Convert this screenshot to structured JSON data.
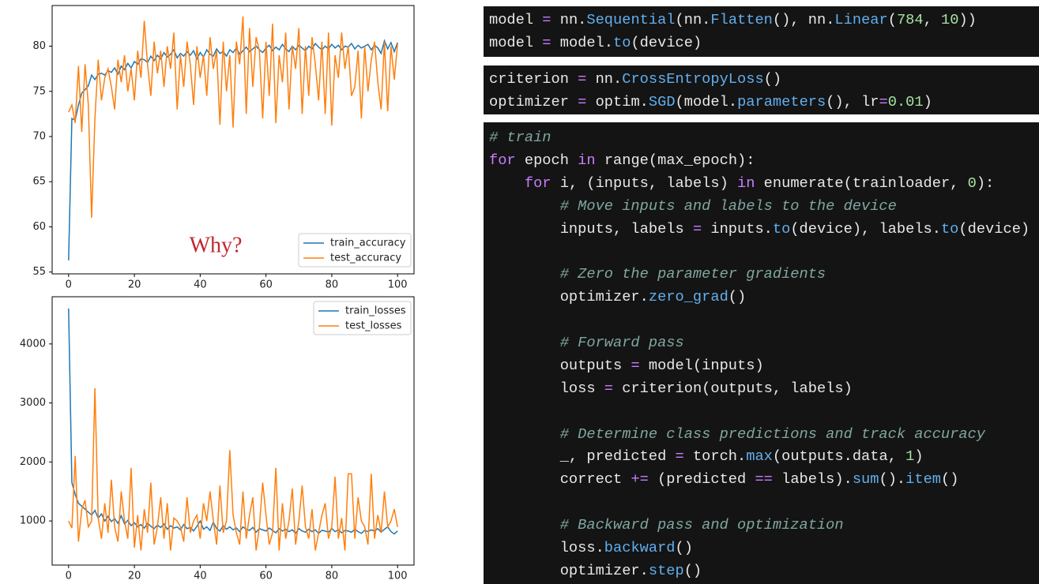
{
  "chart_data": [
    {
      "type": "line",
      "annotation": "Why?",
      "legend": "lower right",
      "xlim": [
        -5,
        105
      ],
      "ylim": [
        54.8,
        84.5
      ],
      "xticks": [
        0,
        20,
        40,
        60,
        80,
        100
      ],
      "yticks": [
        55,
        60,
        65,
        70,
        75,
        80
      ],
      "x": [
        0,
        1,
        2,
        3,
        4,
        5,
        6,
        7,
        8,
        9,
        10,
        11,
        12,
        13,
        14,
        15,
        16,
        17,
        18,
        19,
        20,
        21,
        22,
        23,
        24,
        25,
        26,
        27,
        28,
        29,
        30,
        31,
        32,
        33,
        34,
        35,
        36,
        37,
        38,
        39,
        40,
        41,
        42,
        43,
        44,
        45,
        46,
        47,
        48,
        49,
        50,
        51,
        52,
        53,
        54,
        55,
        56,
        57,
        58,
        59,
        60,
        61,
        62,
        63,
        64,
        65,
        66,
        67,
        68,
        69,
        70,
        71,
        72,
        73,
        74,
        75,
        76,
        77,
        78,
        79,
        80,
        81,
        82,
        83,
        84,
        85,
        86,
        87,
        88,
        89,
        90,
        91,
        92,
        93,
        94,
        95,
        96,
        97,
        98,
        99,
        100
      ],
      "series": [
        {
          "name": "train_accuracy",
          "color": "#1f77b4",
          "values": [
            56.3,
            72.0,
            71.8,
            73.5,
            74.8,
            75.2,
            75.6,
            76.8,
            76.3,
            76.9,
            77.0,
            76.8,
            77.3,
            77.1,
            77.6,
            76.9,
            77.8,
            77.4,
            78.1,
            77.6,
            78.3,
            78.0,
            78.6,
            78.5,
            78.2,
            78.9,
            78.4,
            79.0,
            78.6,
            79.3,
            78.8,
            79.1,
            79.6,
            78.7,
            79.2,
            78.9,
            79.4,
            79.0,
            79.5,
            78.6,
            79.3,
            78.8,
            79.6,
            79.1,
            78.9,
            79.7,
            79.2,
            79.4,
            78.9,
            79.6,
            79.3,
            79.8,
            79.1,
            79.5,
            79.9,
            79.4,
            79.7,
            80.0,
            79.6,
            79.3,
            79.8,
            80.1,
            79.5,
            79.9,
            79.6,
            80.2,
            79.7,
            79.4,
            80.0,
            79.6,
            80.1,
            79.8,
            79.5,
            80.0,
            79.7,
            80.3,
            79.9,
            79.6,
            80.0,
            79.7,
            80.2,
            79.8,
            80.1,
            79.6,
            80.0,
            79.9,
            80.3,
            79.7,
            80.1,
            79.8,
            80.0,
            80.2,
            79.6,
            80.1,
            79.8,
            79.2,
            80.6,
            79.7,
            80.4,
            79.4,
            80.4
          ]
        },
        {
          "name": "test_accuracy",
          "color": "#ff7f0e",
          "values": [
            72.7,
            73.5,
            71.5,
            77.8,
            70.5,
            78.0,
            73.5,
            61.0,
            72.0,
            78.5,
            74.0,
            76.5,
            77.5,
            75.5,
            73.0,
            78.5,
            76.0,
            79.0,
            75.0,
            77.5,
            74.0,
            79.5,
            76.5,
            82.8,
            78.0,
            74.5,
            80.5,
            77.0,
            79.5,
            75.5,
            80.0,
            77.5,
            81.5,
            73.0,
            79.0,
            75.5,
            80.5,
            78.0,
            73.5,
            80.0,
            76.5,
            79.0,
            74.5,
            81.0,
            77.5,
            79.5,
            71.3,
            80.5,
            75.0,
            79.0,
            71.0,
            80.5,
            78.0,
            83.3,
            72.5,
            82.0,
            75.5,
            81.0,
            79.5,
            72.0,
            80.5,
            74.5,
            82.5,
            71.5,
            79.0,
            76.0,
            81.5,
            73.0,
            80.0,
            77.5,
            82.0,
            72.5,
            80.0,
            74.5,
            81.0,
            78.0,
            74.0,
            80.5,
            72.5,
            81.5,
            71.2,
            79.0,
            76.5,
            81.5,
            77.5,
            80.0,
            74.5,
            75.5,
            79.5,
            72.0,
            80.0,
            75.0,
            78.5,
            80.5,
            76.0,
            73.0,
            80.5,
            72.8,
            80.0,
            76.3,
            80.3
          ]
        }
      ]
    },
    {
      "type": "line",
      "legend": "upper right",
      "xlim": [
        -5,
        105
      ],
      "ylim": [
        253,
        4800
      ],
      "xticks": [
        0,
        20,
        40,
        60,
        80,
        100
      ],
      "yticks": [
        1000,
        2000,
        3000,
        4000
      ],
      "x": [
        0,
        1,
        2,
        3,
        4,
        5,
        6,
        7,
        8,
        9,
        10,
        11,
        12,
        13,
        14,
        15,
        16,
        17,
        18,
        19,
        20,
        21,
        22,
        23,
        24,
        25,
        26,
        27,
        28,
        29,
        30,
        31,
        32,
        33,
        34,
        35,
        36,
        37,
        38,
        39,
        40,
        41,
        42,
        43,
        44,
        45,
        46,
        47,
        48,
        49,
        50,
        51,
        52,
        53,
        54,
        55,
        56,
        57,
        58,
        59,
        60,
        61,
        62,
        63,
        64,
        65,
        66,
        67,
        68,
        69,
        70,
        71,
        72,
        73,
        74,
        75,
        76,
        77,
        78,
        79,
        80,
        81,
        82,
        83,
        84,
        85,
        86,
        87,
        88,
        89,
        90,
        91,
        92,
        93,
        94,
        95,
        96,
        97,
        98,
        99,
        100
      ],
      "series": [
        {
          "name": "train_losses",
          "color": "#1f77b4",
          "values": [
            4600,
            1650,
            1450,
            1300,
            1250,
            1200,
            1150,
            1100,
            1180,
            1050,
            1120,
            1000,
            1080,
            990,
            1040,
            960,
            1090,
            950,
            1010,
            920,
            970,
            900,
            940,
            880,
            960,
            910,
            870,
            930,
            890,
            950,
            860,
            920,
            880,
            900,
            850,
            940,
            870,
            890,
            830,
            910,
            1000,
            860,
            900,
            840,
            980,
            870,
            830,
            920,
            860,
            900,
            850,
            880,
            820,
            900,
            860,
            840,
            890,
            810,
            870,
            850,
            830,
            880,
            840,
            800,
            870,
            830,
            860,
            820,
            850,
            790,
            870,
            830,
            810,
            860,
            820,
            850,
            790,
            840,
            830,
            810,
            870,
            820,
            850,
            800,
            840,
            830,
            810,
            860,
            820,
            790,
            840,
            820,
            850,
            830,
            870,
            810,
            860,
            900,
            820,
            780,
            830
          ]
        },
        {
          "name": "test_losses",
          "color": "#ff7f0e",
          "values": [
            1000,
            880,
            2100,
            650,
            1200,
            1350,
            900,
            1000,
            3250,
            1050,
            700,
            1300,
            800,
            1700,
            900,
            650,
            1500,
            1000,
            700,
            1900,
            550,
            1100,
            500,
            1200,
            800,
            1650,
            600,
            900,
            1400,
            700,
            1300,
            500,
            1050,
            1000,
            900,
            650,
            1400,
            800,
            1000,
            1100,
            700,
            1300,
            1000,
            1500,
            1000,
            600,
            1600,
            800,
            1000,
            2200,
            1100,
            800,
            600,
            1500,
            700,
            1100,
            1400,
            500,
            900,
            1650,
            1100,
            600,
            800,
            1900,
            500,
            1300,
            700,
            1000,
            1550,
            600,
            1000,
            1600,
            900,
            700,
            1200,
            500,
            800,
            1100,
            1300,
            700,
            900,
            1750,
            700,
            1050,
            500,
            1800,
            1800,
            700,
            1400,
            1000,
            900,
            600,
            1800,
            700,
            1100,
            800,
            1500,
            900,
            1000,
            1200,
            900
          ]
        }
      ]
    }
  ],
  "code_blocks": [
    {
      "lines": [
        [
          [
            "model ",
            "#e8e8e8"
          ],
          [
            "=",
            "#c77dff"
          ],
          [
            " nn.",
            "#e8e8e8"
          ],
          [
            "Sequential",
            "#61afef"
          ],
          [
            "(nn.",
            "#e8e8e8"
          ],
          [
            "Flatten",
            "#61afef"
          ],
          [
            "(), nn.",
            "#e8e8e8"
          ],
          [
            "Linear",
            "#61afef"
          ],
          [
            "(",
            "#e8e8e8"
          ],
          [
            "784",
            "#a6e3a1"
          ],
          [
            ", ",
            "#e8e8e8"
          ],
          [
            "10",
            "#a6e3a1"
          ],
          [
            "))",
            "#e8e8e8"
          ]
        ],
        [
          [
            "model ",
            "#e8e8e8"
          ],
          [
            "=",
            "#c77dff"
          ],
          [
            " model.",
            "#e8e8e8"
          ],
          [
            "to",
            "#61afef"
          ],
          [
            "(device)",
            "#e8e8e8"
          ]
        ]
      ]
    },
    {
      "lines": [
        [
          [
            "criterion ",
            "#e8e8e8"
          ],
          [
            "=",
            "#c77dff"
          ],
          [
            " nn.",
            "#e8e8e8"
          ],
          [
            "CrossEntropyLoss",
            "#61afef"
          ],
          [
            "()",
            "#e8e8e8"
          ]
        ],
        [
          [
            "optimizer ",
            "#e8e8e8"
          ],
          [
            "=",
            "#c77dff"
          ],
          [
            " optim.",
            "#e8e8e8"
          ],
          [
            "SGD",
            "#61afef"
          ],
          [
            "(model.",
            "#e8e8e8"
          ],
          [
            "parameters",
            "#61afef"
          ],
          [
            "(), lr",
            "#e8e8e8"
          ],
          [
            "=",
            "#c77dff"
          ],
          [
            "0.01",
            "#a6e3a1"
          ],
          [
            ")",
            "#e8e8e8"
          ]
        ]
      ]
    },
    {
      "lines": [
        [
          [
            "# train",
            "#7fa7a0",
            "italic"
          ]
        ],
        [
          [
            "for",
            "#c77dff"
          ],
          [
            " epoch ",
            "#e8e8e8"
          ],
          [
            "in",
            "#c77dff"
          ],
          [
            " range(max_epoch):",
            "#e8e8e8"
          ]
        ],
        [
          [
            "    for",
            "#c77dff"
          ],
          [
            " i, (inputs, labels) ",
            "#e8e8e8"
          ],
          [
            "in",
            "#c77dff"
          ],
          [
            " enumerate(trainloader, ",
            "#e8e8e8"
          ],
          [
            "0",
            "#a6e3a1"
          ],
          [
            "):",
            "#e8e8e8"
          ]
        ],
        [
          [
            "        # Move inputs and labels to the device",
            "#7fa7a0",
            "italic"
          ]
        ],
        [
          [
            "        inputs, labels ",
            "#e8e8e8"
          ],
          [
            "=",
            "#c77dff"
          ],
          [
            " inputs.",
            "#e8e8e8"
          ],
          [
            "to",
            "#61afef"
          ],
          [
            "(device), labels.",
            "#e8e8e8"
          ],
          [
            "to",
            "#61afef"
          ],
          [
            "(device)",
            "#e8e8e8"
          ]
        ],
        [],
        [
          [
            "        # Zero the parameter gradients",
            "#7fa7a0",
            "italic"
          ]
        ],
        [
          [
            "        optimizer.",
            "#e8e8e8"
          ],
          [
            "zero_grad",
            "#61afef"
          ],
          [
            "()",
            "#e8e8e8"
          ]
        ],
        [],
        [
          [
            "        # Forward pass",
            "#7fa7a0",
            "italic"
          ]
        ],
        [
          [
            "        outputs ",
            "#e8e8e8"
          ],
          [
            "=",
            "#c77dff"
          ],
          [
            " model(inputs)",
            "#e8e8e8"
          ]
        ],
        [
          [
            "        loss ",
            "#e8e8e8"
          ],
          [
            "=",
            "#c77dff"
          ],
          [
            " criterion(outputs, labels)",
            "#e8e8e8"
          ]
        ],
        [],
        [
          [
            "        # Determine class predictions and track accuracy",
            "#7fa7a0",
            "italic"
          ]
        ],
        [
          [
            "        _, predicted ",
            "#e8e8e8"
          ],
          [
            "=",
            "#c77dff"
          ],
          [
            " torch.",
            "#e8e8e8"
          ],
          [
            "max",
            "#61afef"
          ],
          [
            "(outputs.data, ",
            "#e8e8e8"
          ],
          [
            "1",
            "#a6e3a1"
          ],
          [
            ")",
            "#e8e8e8"
          ]
        ],
        [
          [
            "        correct ",
            "#e8e8e8"
          ],
          [
            "+=",
            "#c77dff"
          ],
          [
            " (predicted ",
            "#e8e8e8"
          ],
          [
            "==",
            "#c77dff"
          ],
          [
            " labels).",
            "#e8e8e8"
          ],
          [
            "sum",
            "#61afef"
          ],
          [
            "().",
            "#e8e8e8"
          ],
          [
            "item",
            "#61afef"
          ],
          [
            "()",
            "#e8e8e8"
          ]
        ],
        [],
        [
          [
            "        # Backward pass and optimization",
            "#7fa7a0",
            "italic"
          ]
        ],
        [
          [
            "        loss.",
            "#e8e8e8"
          ],
          [
            "backward",
            "#61afef"
          ],
          [
            "()",
            "#e8e8e8"
          ]
        ],
        [
          [
            "        optimizer.",
            "#e8e8e8"
          ],
          [
            "step",
            "#61afef"
          ],
          [
            "()",
            "#e8e8e8"
          ]
        ]
      ]
    }
  ]
}
